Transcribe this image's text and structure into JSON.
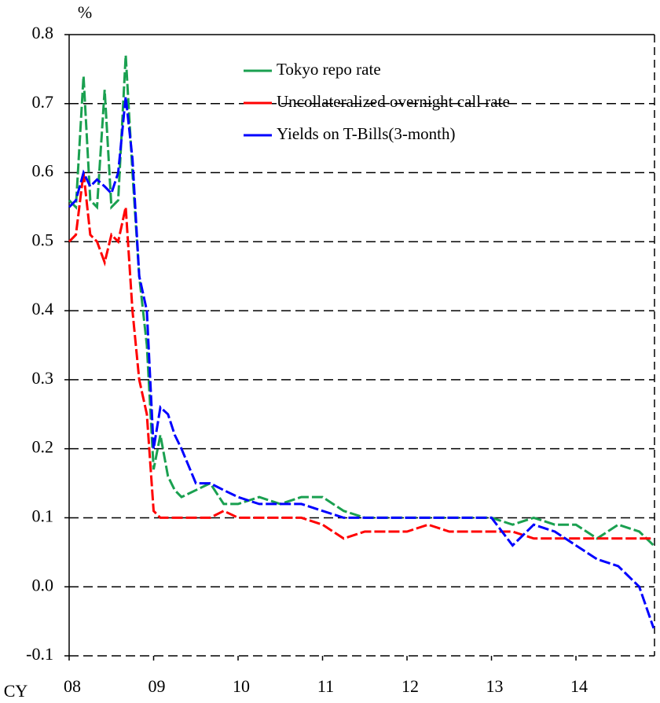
{
  "chart_data": {
    "type": "line",
    "y_unit": "%",
    "x_label": "CY",
    "x": [
      2008.0,
      2008.08,
      2008.17,
      2008.25,
      2008.33,
      2008.42,
      2008.5,
      2008.58,
      2008.67,
      2008.75,
      2008.83,
      2008.92,
      2009.0,
      2009.08,
      2009.17,
      2009.25,
      2009.33,
      2009.5,
      2009.67,
      2009.83,
      2010.0,
      2010.25,
      2010.5,
      2010.75,
      2011.0,
      2011.25,
      2011.5,
      2011.75,
      2012.0,
      2012.25,
      2012.5,
      2012.75,
      2013.0,
      2013.25,
      2013.5,
      2013.75,
      2014.0,
      2014.25,
      2014.5,
      2014.75,
      2014.92
    ],
    "series": [
      {
        "name": "Tokyo repo rate",
        "color": "#1aa050",
        "values": [
          0.56,
          0.55,
          0.74,
          0.56,
          0.55,
          0.72,
          0.55,
          0.56,
          0.77,
          0.6,
          0.45,
          0.35,
          0.17,
          0.22,
          0.16,
          0.14,
          0.13,
          0.14,
          0.15,
          0.12,
          0.12,
          0.13,
          0.12,
          0.13,
          0.13,
          0.11,
          0.1,
          0.1,
          0.1,
          0.1,
          0.1,
          0.1,
          0.1,
          0.09,
          0.1,
          0.09,
          0.09,
          0.07,
          0.09,
          0.08,
          0.06
        ]
      },
      {
        "name": "Uncollateralized overnight call rate",
        "color": "#ff0000",
        "values": [
          0.5,
          0.51,
          0.6,
          0.51,
          0.5,
          0.47,
          0.51,
          0.5,
          0.55,
          0.4,
          0.3,
          0.25,
          0.11,
          0.1,
          0.1,
          0.1,
          0.1,
          0.1,
          0.1,
          0.11,
          0.1,
          0.1,
          0.1,
          0.1,
          0.09,
          0.07,
          0.08,
          0.08,
          0.08,
          0.09,
          0.08,
          0.08,
          0.08,
          0.08,
          0.07,
          0.07,
          0.07,
          0.07,
          0.07,
          0.07,
          0.07
        ]
      },
      {
        "name": "Yields on T-Bills(3-month)",
        "color": "#0000ff",
        "values": [
          0.55,
          0.56,
          0.6,
          0.58,
          0.59,
          0.58,
          0.57,
          0.6,
          0.71,
          0.62,
          0.45,
          0.4,
          0.2,
          0.26,
          0.25,
          0.22,
          0.2,
          0.15,
          0.15,
          0.14,
          0.13,
          0.12,
          0.12,
          0.12,
          0.11,
          0.1,
          0.1,
          0.1,
          0.1,
          0.1,
          0.1,
          0.1,
          0.1,
          0.06,
          0.09,
          0.08,
          0.06,
          0.04,
          0.03,
          0.0,
          -0.06
        ]
      }
    ],
    "xlim": [
      2008,
      2014.93
    ],
    "xticks": [
      {
        "value": 2008,
        "label": "08"
      },
      {
        "value": 2009,
        "label": "09"
      },
      {
        "value": 2010,
        "label": "10"
      },
      {
        "value": 2011,
        "label": "11"
      },
      {
        "value": 2012,
        "label": "12"
      },
      {
        "value": 2013,
        "label": "13"
      },
      {
        "value": 2014,
        "label": "14"
      }
    ],
    "ylim": [
      -0.1,
      0.8
    ],
    "yticks": [
      -0.1,
      {
        "value": 0,
        "label": "0.0"
      },
      0.1,
      0.2,
      0.3,
      0.4,
      0.5,
      0.6,
      0.7,
      0.8
    ],
    "grid": true,
    "legend": "upper right"
  }
}
